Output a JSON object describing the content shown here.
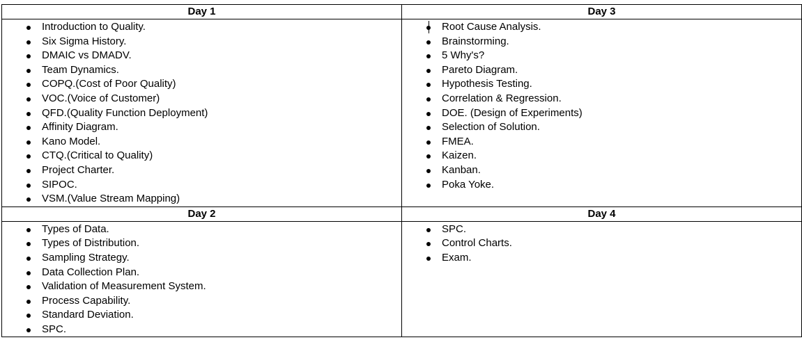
{
  "days": [
    {
      "title": "Day 1",
      "items": [
        "Introduction to Quality.",
        "Six Sigma History.",
        "DMAIC vs DMADV.",
        "Team Dynamics.",
        "COPQ.(Cost of Poor Quality)",
        "VOC.(Voice of Customer)",
        "QFD.(Quality Function Deployment)",
        "Affinity Diagram.",
        "Kano Model.",
        "CTQ.(Critical to Quality)",
        "Project Charter.",
        "SIPOC.",
        "VSM.(Value Stream Mapping)"
      ]
    },
    {
      "title": "Day 3",
      "items": [
        "Root Cause Analysis.",
        "Brainstorming.",
        "5 Why's?",
        "Pareto Diagram.",
        "Hypothesis Testing.",
        "Correlation & Regression.",
        "DOE. (Design of Experiments)",
        "Selection of Solution.",
        "FMEA.",
        "Kaizen.",
        "Kanban.",
        "Poka Yoke."
      ]
    },
    {
      "title": "Day 2",
      "items": [
        "Types of Data.",
        "Types of Distribution.",
        "Sampling Strategy.",
        "Data Collection Plan.",
        "Validation of Measurement System.",
        "Process Capability.",
        "Standard Deviation.",
        "SPC."
      ]
    },
    {
      "title": "Day 4",
      "items": [
        "SPC.",
        "Control Charts.",
        "Exam."
      ]
    }
  ]
}
